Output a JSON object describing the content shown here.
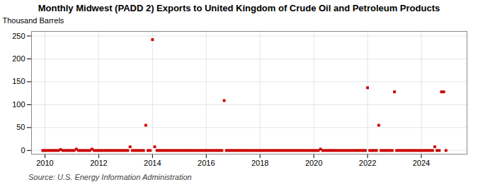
{
  "chart_data": {
    "type": "scatter",
    "title": "Monthly Midwest (PADD 2) Exports to United Kingdom of Crude Oil and Petroleum Products",
    "ylabel": "Thousand Barrels",
    "source": "Source: U.S. Energy Information Administration",
    "color": "#cc0000",
    "marker": "square",
    "grid": true,
    "xlim": [
      2009.5,
      2025.7
    ],
    "xticks": [
      2010,
      2012,
      2014,
      2016,
      2018,
      2020,
      2022,
      2024
    ],
    "ylim": [
      -8,
      260
    ],
    "yticks": [
      0,
      50,
      100,
      150,
      200,
      250
    ],
    "x": [
      2009.917,
      2010.0,
      2010.083,
      2010.167,
      2010.25,
      2010.333,
      2010.417,
      2010.5,
      2010.583,
      2010.667,
      2010.75,
      2010.833,
      2010.917,
      2011.0,
      2011.083,
      2011.167,
      2011.25,
      2011.333,
      2011.417,
      2011.5,
      2011.583,
      2011.667,
      2011.75,
      2011.833,
      2011.917,
      2012.0,
      2012.083,
      2012.167,
      2012.25,
      2012.333,
      2012.417,
      2012.5,
      2012.583,
      2012.667,
      2012.75,
      2012.833,
      2012.917,
      2013.0,
      2013.083,
      2013.167,
      2013.25,
      2013.333,
      2013.417,
      2013.5,
      2013.583,
      2013.667,
      2013.75,
      2013.833,
      2013.917,
      2014.0,
      2014.083,
      2014.167,
      2014.25,
      2014.333,
      2014.417,
      2014.5,
      2014.583,
      2014.667,
      2014.75,
      2014.833,
      2014.917,
      2015.0,
      2015.083,
      2015.167,
      2015.25,
      2015.333,
      2015.417,
      2015.5,
      2015.583,
      2015.667,
      2015.75,
      2015.833,
      2015.917,
      2016.0,
      2016.083,
      2016.167,
      2016.25,
      2016.333,
      2016.417,
      2016.5,
      2016.583,
      2016.667,
      2016.75,
      2016.833,
      2016.917,
      2017.0,
      2017.083,
      2017.167,
      2017.25,
      2017.333,
      2017.417,
      2017.5,
      2017.583,
      2017.667,
      2017.75,
      2017.833,
      2017.917,
      2018.0,
      2018.083,
      2018.167,
      2018.25,
      2018.333,
      2018.417,
      2018.5,
      2018.583,
      2018.667,
      2018.75,
      2018.833,
      2018.917,
      2019.0,
      2019.083,
      2019.167,
      2019.25,
      2019.333,
      2019.417,
      2019.5,
      2019.583,
      2019.667,
      2019.75,
      2019.833,
      2019.917,
      2020.0,
      2020.083,
      2020.167,
      2020.25,
      2020.333,
      2020.417,
      2020.5,
      2020.583,
      2020.667,
      2020.75,
      2020.833,
      2020.917,
      2021.0,
      2021.083,
      2021.167,
      2021.25,
      2021.333,
      2021.417,
      2021.5,
      2021.583,
      2021.667,
      2021.75,
      2021.833,
      2021.917,
      2022.0,
      2022.083,
      2022.167,
      2022.25,
      2022.333,
      2022.417,
      2022.5,
      2022.583,
      2022.667,
      2022.75,
      2022.833,
      2022.917,
      2023.0,
      2023.083,
      2023.167,
      2023.25,
      2023.333,
      2023.417,
      2023.5,
      2023.583,
      2023.667,
      2023.75,
      2023.833,
      2023.917,
      2024.0,
      2024.083,
      2024.167,
      2024.25,
      2024.333,
      2024.417,
      2024.5,
      2024.583,
      2024.667,
      2024.75,
      2024.833,
      2024.917
    ],
    "values": [
      0,
      0,
      0,
      0,
      0,
      0,
      0,
      0,
      2,
      0,
      0,
      0,
      0,
      0,
      0,
      3,
      0,
      0,
      0,
      0,
      0,
      0,
      3,
      0,
      0,
      0,
      0,
      0,
      0,
      0,
      0,
      0,
      0,
      0,
      0,
      0,
      0,
      0,
      0,
      8,
      0,
      0,
      0,
      0,
      0,
      0,
      55,
      0,
      0,
      242,
      8,
      0,
      0,
      0,
      0,
      0,
      0,
      0,
      0,
      0,
      0,
      0,
      0,
      0,
      0,
      0,
      0,
      0,
      0,
      0,
      0,
      0,
      0,
      0,
      0,
      0,
      0,
      0,
      0,
      0,
      0,
      109,
      0,
      0,
      0,
      0,
      0,
      0,
      0,
      0,
      0,
      0,
      0,
      0,
      0,
      0,
      0,
      0,
      0,
      0,
      0,
      0,
      0,
      0,
      0,
      0,
      0,
      0,
      0,
      0,
      0,
      0,
      0,
      0,
      0,
      0,
      0,
      0,
      0,
      0,
      0,
      0,
      0,
      0,
      3,
      0,
      0,
      0,
      0,
      0,
      0,
      0,
      0,
      0,
      0,
      0,
      0,
      0,
      0,
      0,
      0,
      0,
      0,
      0,
      0,
      137,
      0,
      0,
      0,
      0,
      55,
      0,
      0,
      0,
      0,
      0,
      0,
      128,
      0,
      0,
      0,
      0,
      0,
      0,
      0,
      0,
      0,
      0,
      0,
      0,
      0,
      0,
      0,
      0,
      0,
      8,
      0,
      0,
      128,
      128,
      0
    ]
  }
}
